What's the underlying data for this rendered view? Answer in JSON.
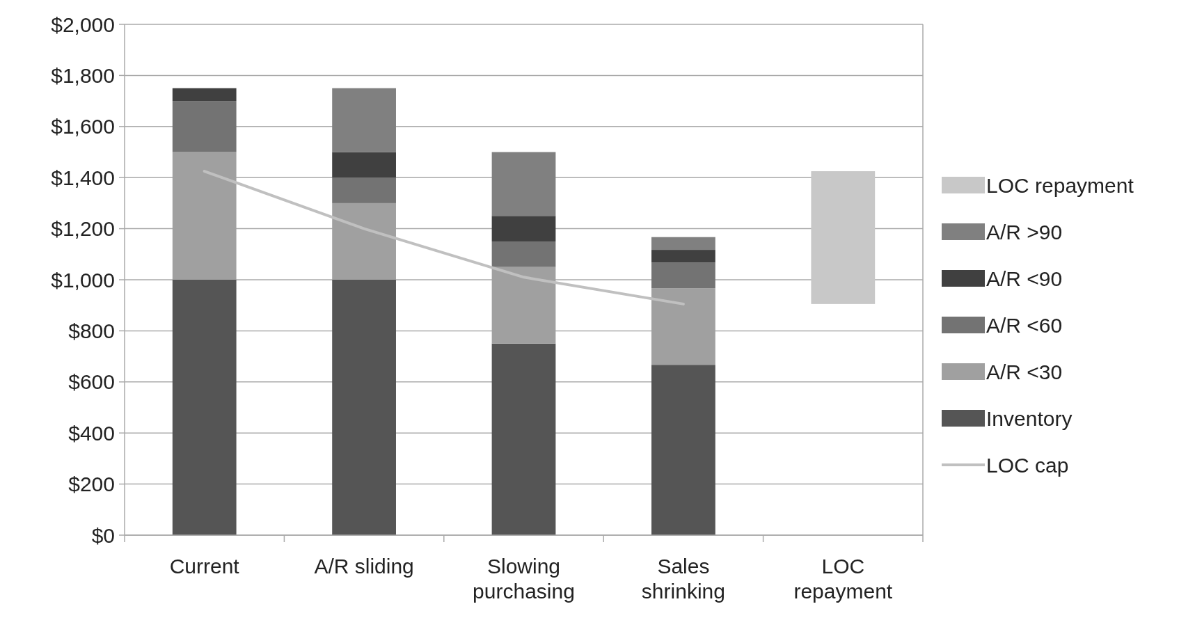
{
  "chart_data": {
    "type": "bar",
    "stacked": true,
    "categories": [
      "Current",
      "A/R sliding",
      "Slowing purchasing",
      "Sales shrinking",
      "LOC repayment"
    ],
    "series": [
      {
        "name": "Inventory",
        "color": "#555555",
        "values": [
          1000,
          1000,
          750,
          667,
          null
        ]
      },
      {
        "name": "A/R <30",
        "color": "#a0a0a0",
        "values": [
          500,
          300,
          300,
          300,
          null
        ]
      },
      {
        "name": "A/R <60",
        "color": "#737373",
        "values": [
          200,
          100,
          100,
          100,
          null
        ]
      },
      {
        "name": "A/R <90",
        "color": "#404040",
        "values": [
          50,
          100,
          100,
          50,
          null
        ]
      },
      {
        "name": "A/R >90",
        "color": "#808080",
        "values": [
          null,
          250,
          250,
          50,
          null
        ]
      },
      {
        "name": "LOC repayment",
        "color": "#c8c8c8",
        "values": [
          null,
          null,
          null,
          null,
          520
        ],
        "base": [
          null,
          null,
          null,
          null,
          905
        ]
      },
      {
        "name": "LOC cap",
        "type": "line",
        "color": "#c0c0c0",
        "values": [
          1425,
          1200,
          1010,
          905,
          null
        ]
      }
    ],
    "ylim": [
      0,
      2000
    ],
    "yticks": [
      {
        "value": 0,
        "label": "$0"
      },
      {
        "value": 200,
        "label": "$200"
      },
      {
        "value": 400,
        "label": "$400"
      },
      {
        "value": 600,
        "label": "$600"
      },
      {
        "value": 800,
        "label": "$800"
      },
      {
        "value": 1000,
        "label": "$1,000"
      },
      {
        "value": 1200,
        "label": "$1,200"
      },
      {
        "value": 1400,
        "label": "$1,400"
      },
      {
        "value": 1600,
        "label": "$1,600"
      },
      {
        "value": 1800,
        "label": "$1,800"
      },
      {
        "value": 2000,
        "label": "$2,000"
      }
    ],
    "grid": "y",
    "legend": "right",
    "marker": "none",
    "line_style": "solid"
  }
}
